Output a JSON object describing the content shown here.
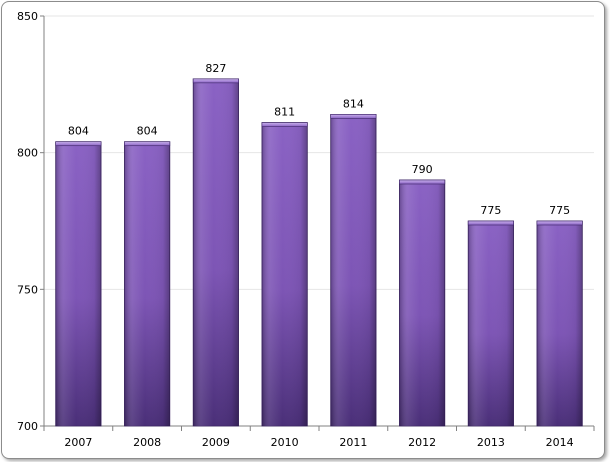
{
  "chart_data": {
    "type": "bar",
    "title": "",
    "xlabel": "",
    "ylabel": "",
    "categories": [
      "2007",
      "2008",
      "2009",
      "2010",
      "2011",
      "2012",
      "2013",
      "2014"
    ],
    "values": [
      804,
      804,
      827,
      811,
      814,
      790,
      775,
      775
    ],
    "data_labels": [
      "804",
      "804",
      "827",
      "811",
      "814",
      "790",
      "775",
      "775"
    ],
    "ylim": [
      700,
      850
    ],
    "yticks": [
      700,
      750,
      800,
      850
    ],
    "ytick_labels": [
      "700",
      "750",
      "800",
      "850"
    ],
    "grid": true,
    "legend": "none",
    "colors": {
      "bar_top": "#8a62c4",
      "bar_mid": "#7d55b5",
      "bar_bottom": "#4a2f78",
      "bar_edge": "#3d2566",
      "axis": "#808080",
      "grid": "#e6e6e6"
    }
  }
}
